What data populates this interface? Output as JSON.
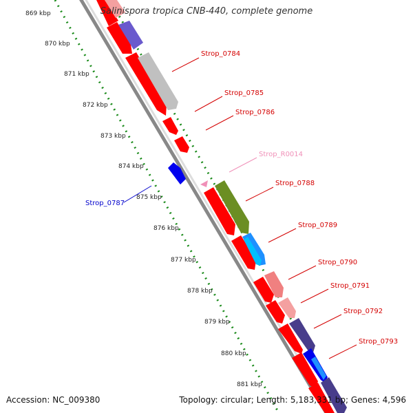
{
  "title": "Salinispora tropica CNB-440, complete genome",
  "accession": "Accession: NC_009380",
  "topology": "Topology: circular; Length: 5,183,331 bp; Genes: 4,596",
  "kbp_labels": [
    "869 kbp",
    "870 kbp",
    "871 kbp",
    "872 kbp",
    "873 kbp",
    "874 kbp",
    "875 kbp",
    "876 kbp",
    "877 kbp",
    "878 kbp",
    "879 kbp",
    "880 kbp",
    "881 kbp"
  ],
  "gene_labels": [
    {
      "text": "Strop_0784",
      "color": "#d40000"
    },
    {
      "text": "Strop_0785",
      "color": "#d40000"
    },
    {
      "text": "Strop_0786",
      "color": "#d40000"
    },
    {
      "text": "Strop_R0014",
      "color": "#f090b8"
    },
    {
      "text": "Strop_0788",
      "color": "#d40000"
    },
    {
      "text": "Strop_0789",
      "color": "#d40000"
    },
    {
      "text": "Strop_0790",
      "color": "#d40000"
    },
    {
      "text": "Strop_0791",
      "color": "#d40000"
    },
    {
      "text": "Strop_0792",
      "color": "#d40000"
    },
    {
      "text": "Strop_0793",
      "color": "#d40000"
    },
    {
      "text": "Strop_0787",
      "color": "#0000cc"
    }
  ],
  "colors": {
    "cds_red": "#ff0000",
    "reverse_blue": "#0000ee",
    "rrna_pink": "#f090b8",
    "backbone": "#888888",
    "gc_dots": "#1a8a1a",
    "olive": "#6b8e23",
    "grey": "#c0c0c0",
    "purple": "#6a5acd",
    "pink": "#f08080",
    "navy": "#483d8b",
    "cyan": "#1e90ff"
  }
}
